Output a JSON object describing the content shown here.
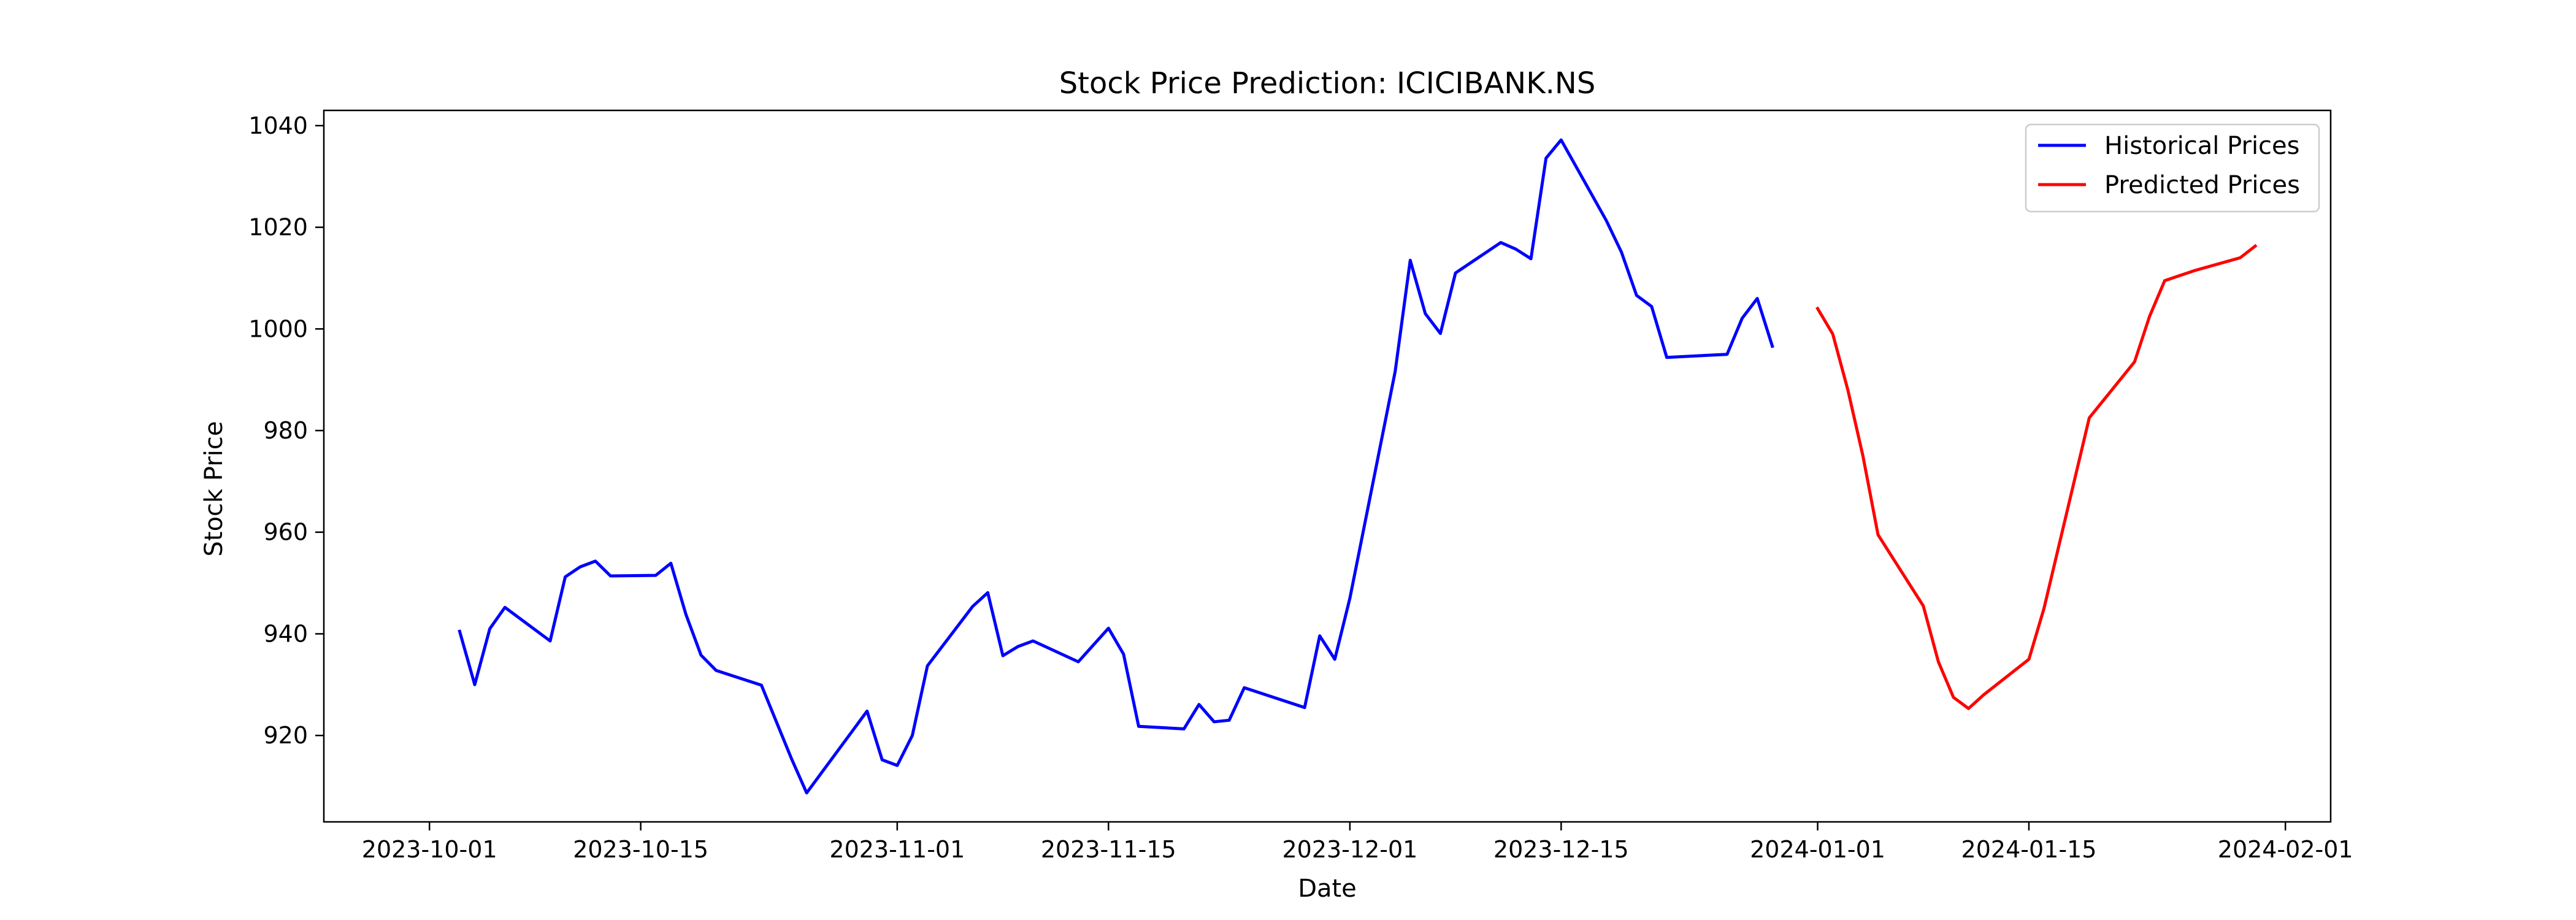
{
  "chart_data": {
    "type": "line",
    "title": "Stock Price Prediction: ICICIBANK.NS",
    "xlabel": "Date",
    "ylabel": "Stock Price",
    "xlim": [
      "2023-09-24",
      "2024-02-04"
    ],
    "ylim": [
      903,
      1043
    ],
    "x_ticks": [
      "2023-10-01",
      "2023-10-15",
      "2023-11-01",
      "2023-11-15",
      "2023-12-01",
      "2023-12-15",
      "2024-01-01",
      "2024-01-15",
      "2024-02-01"
    ],
    "y_ticks": [
      920,
      940,
      960,
      980,
      1000,
      1020,
      1040
    ],
    "grid": false,
    "legend": "top-right",
    "series": [
      {
        "name": "Historical Prices",
        "color": "#0000ff",
        "x": [
          "2023-10-03",
          "2023-10-04",
          "2023-10-05",
          "2023-10-06",
          "2023-10-09",
          "2023-10-10",
          "2023-10-11",
          "2023-10-12",
          "2023-10-13",
          "2023-10-16",
          "2023-10-17",
          "2023-10-18",
          "2023-10-19",
          "2023-10-20",
          "2023-10-23",
          "2023-10-25",
          "2023-10-26",
          "2023-10-30",
          "2023-10-31",
          "2023-11-01",
          "2023-11-02",
          "2023-11-03",
          "2023-11-06",
          "2023-11-07",
          "2023-11-08",
          "2023-11-09",
          "2023-11-10",
          "2023-11-13",
          "2023-11-15",
          "2023-11-16",
          "2023-11-17",
          "2023-11-20",
          "2023-11-21",
          "2023-11-22",
          "2023-11-23",
          "2023-11-24",
          "2023-11-28",
          "2023-11-29",
          "2023-11-30",
          "2023-12-01",
          "2023-12-04",
          "2023-12-05",
          "2023-12-06",
          "2023-12-07",
          "2023-12-08",
          "2023-12-11",
          "2023-12-12",
          "2023-12-13",
          "2023-12-14",
          "2023-12-15",
          "2023-12-18",
          "2023-12-19",
          "2023-12-20",
          "2023-12-21",
          "2023-12-22",
          "2023-12-26",
          "2023-12-27",
          "2023-12-28",
          "2023-12-29"
        ],
        "values": [
          940.5,
          930.0,
          941.0,
          945.2,
          938.6,
          951.2,
          953.2,
          954.3,
          951.4,
          951.5,
          953.9,
          943.8,
          935.8,
          932.8,
          929.9,
          915.4,
          908.7,
          924.8,
          915.2,
          914.1,
          920.0,
          933.7,
          945.4,
          948.1,
          935.7,
          937.5,
          938.6,
          934.5,
          941.1,
          936.0,
          921.8,
          921.3,
          926.1,
          922.7,
          923.0,
          929.4,
          925.5,
          939.6,
          935.0,
          947.0,
          991.6,
          1013.5,
          1003.0,
          999.1,
          1011.0,
          1017.0,
          1015.7,
          1013.8,
          1033.6,
          1037.2,
          1021.3,
          1015.1,
          1006.6,
          1004.4,
          994.4,
          995.0,
          1002.1,
          1006.0,
          996.6
        ]
      },
      {
        "name": "Predicted Prices",
        "color": "#ff0000",
        "x": [
          "2024-01-01",
          "2024-01-02",
          "2024-01-03",
          "2024-01-04",
          "2024-01-05",
          "2024-01-08",
          "2024-01-09",
          "2024-01-10",
          "2024-01-11",
          "2024-01-12",
          "2024-01-15",
          "2024-01-16",
          "2024-01-17",
          "2024-01-18",
          "2024-01-19",
          "2024-01-22",
          "2024-01-23",
          "2024-01-24",
          "2024-01-25",
          "2024-01-26",
          "2024-01-29",
          "2024-01-30"
        ],
        "values": [
          1004.0,
          999.0,
          988.0,
          975.0,
          959.5,
          945.5,
          934.5,
          927.5,
          925.3,
          928.0,
          935.0,
          945.0,
          957.5,
          970.0,
          982.5,
          993.5,
          1002.5,
          1009.5,
          1010.5,
          1011.5,
          1014.0,
          1016.3
        ]
      }
    ]
  }
}
